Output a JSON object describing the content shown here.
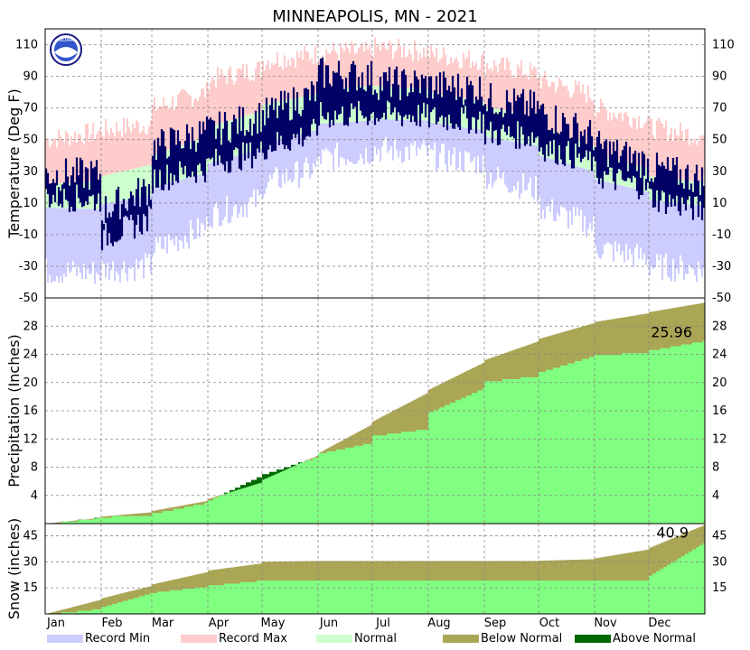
{
  "title": "MINNEAPOLIS, MN - 2021",
  "colors": {
    "record_min": "#ccccff",
    "record_max": "#ffcccc",
    "normal": "#ccffcc",
    "observed_temp": "#000066",
    "below_normal": "#aaa655",
    "above_normal": "#006600",
    "observed_precip": "#80ff80"
  },
  "logo": {
    "icon": "noaa-logo-icon",
    "text": "NOAA"
  },
  "chart_data": [
    {
      "type": "area",
      "panel": "temperature",
      "ylabel": "Temperature (Deg F)",
      "ylim": [
        -50,
        120
      ],
      "yticks": [
        "110",
        "90",
        "70",
        "50",
        "30",
        "10",
        "-10",
        "-30",
        "-50"
      ],
      "x_months": [
        "Jan",
        "Feb",
        "Mar",
        "Apr",
        "May",
        "Jun",
        "Jul",
        "Aug",
        "Sep",
        "Oct",
        "Nov",
        "Dec"
      ],
      "grid": true,
      "series": [
        {
          "name": "Record Max",
          "month_points": [
            {
              "month": "Jan",
              "values": [
                50,
                55
              ]
            },
            {
              "month": "Feb",
              "values": [
                56,
                60
              ]
            },
            {
              "month": "Mar",
              "values": [
                70,
                80
              ]
            },
            {
              "month": "Apr",
              "values": [
                88,
                95
              ]
            },
            {
              "month": "May",
              "values": [
                100,
                104
              ]
            },
            {
              "month": "Jun",
              "values": [
                106,
                105
              ]
            },
            {
              "month": "Jul",
              "values": [
                108,
                106
              ]
            },
            {
              "month": "Aug",
              "values": [
                104,
                100
              ]
            },
            {
              "month": "Sep",
              "values": [
                98,
                92
              ]
            },
            {
              "month": "Oct",
              "values": [
                88,
                78
              ]
            },
            {
              "month": "Nov",
              "values": [
                70,
                62
              ]
            },
            {
              "month": "Dec",
              "values": [
                58,
                52
              ]
            }
          ]
        },
        {
          "name": "Normal",
          "normal_high": [
            {
              "month": "Jan",
              "values": [
                22,
                24
              ]
            },
            {
              "month": "Feb",
              "values": [
                27,
                34
              ]
            },
            {
              "month": "Mar",
              "values": [
                40,
                52
              ]
            },
            {
              "month": "Apr",
              "values": [
                58,
                68
              ]
            },
            {
              "month": "May",
              "values": [
                72,
                79
              ]
            },
            {
              "month": "Jun",
              "values": [
                82,
                84
              ]
            },
            {
              "month": "Jul",
              "values": [
                84,
                82
              ]
            },
            {
              "month": "Aug",
              "values": [
                80,
                74
              ]
            },
            {
              "month": "Sep",
              "values": [
                71,
                64
              ]
            },
            {
              "month": "Oct",
              "values": [
                58,
                46
              ]
            },
            {
              "month": "Nov",
              "values": [
                40,
                32
              ]
            },
            {
              "month": "Dec",
              "values": [
                27,
                23
              ]
            }
          ],
          "normal_low": [
            {
              "month": "Jan",
              "values": [
                7,
                6
              ]
            },
            {
              "month": "Feb",
              "values": [
                9,
                15
              ]
            },
            {
              "month": "Mar",
              "values": [
                20,
                29
              ]
            },
            {
              "month": "Apr",
              "values": [
                35,
                44
              ]
            },
            {
              "month": "May",
              "values": [
                48,
                56
              ]
            },
            {
              "month": "Jun",
              "values": [
                60,
                62
              ]
            },
            {
              "month": "Jul",
              "values": [
                63,
                62
              ]
            },
            {
              "month": "Aug",
              "values": [
                61,
                56
              ]
            },
            {
              "month": "Sep",
              "values": [
                52,
                46
              ]
            },
            {
              "month": "Oct",
              "values": [
                40,
                30
              ]
            },
            {
              "month": "Nov",
              "values": [
                25,
                17
              ]
            },
            {
              "month": "Dec",
              "values": [
                12,
                8
              ]
            }
          ]
        },
        {
          "name": "Record Min",
          "month_points": [
            {
              "month": "Jan",
              "values": [
                -33,
                -34
              ]
            },
            {
              "month": "Feb",
              "values": [
                -32,
                -30
              ]
            },
            {
              "month": "Mar",
              "values": [
                -20,
                -5
              ]
            },
            {
              "month": "Apr",
              "values": [
                2,
                12
              ]
            },
            {
              "month": "May",
              "values": [
                22,
                32
              ]
            },
            {
              "month": "Jun",
              "values": [
                38,
                42
              ]
            },
            {
              "month": "Jul",
              "values": [
                44,
                42
              ]
            },
            {
              "month": "Aug",
              "values": [
                40,
                35
              ]
            },
            {
              "month": "Sep",
              "values": [
                28,
                18
              ]
            },
            {
              "month": "Oct",
              "values": [
                8,
                -5
              ]
            },
            {
              "month": "Nov",
              "values": [
                -18,
                -25
              ]
            },
            {
              "month": "Dec",
              "values": [
                -30,
                -32
              ]
            }
          ]
        },
        {
          "name": "Observed",
          "month_points": [
            {
              "month": "Jan",
              "high": [
                28,
                28
              ],
              "low": [
                14,
                12
              ]
            },
            {
              "month": "Feb",
              "high": [
                5,
                20
              ],
              "low": [
                -12,
                0
              ]
            },
            {
              "month": "Mar",
              "high": [
                45,
                55
              ],
              "low": [
                25,
                32
              ]
            },
            {
              "month": "Apr",
              "high": [
                55,
                65
              ],
              "low": [
                35,
                42
              ]
            },
            {
              "month": "May",
              "high": [
                65,
                80
              ],
              "low": [
                45,
                55
              ]
            },
            {
              "month": "Jun",
              "high": [
                92,
                90
              ],
              "low": [
                65,
                66
              ]
            },
            {
              "month": "Jul",
              "high": [
                86,
                85
              ],
              "low": [
                66,
                65
              ]
            },
            {
              "month": "Aug",
              "high": [
                84,
                82
              ],
              "low": [
                64,
                62
              ]
            },
            {
              "month": "Sep",
              "high": [
                76,
                70
              ],
              "low": [
                54,
                52
              ]
            },
            {
              "month": "Oct",
              "high": [
                68,
                52
              ],
              "low": [
                46,
                36
              ]
            },
            {
              "month": "Nov",
              "high": [
                46,
                35
              ],
              "low": [
                28,
                20
              ]
            },
            {
              "month": "Dec",
              "high": [
                32,
                25
              ],
              "low": [
                14,
                5
              ]
            }
          ]
        }
      ]
    },
    {
      "type": "area",
      "panel": "precipitation",
      "ylabel": "Precipitation (Inches)",
      "ylim": [
        0,
        32
      ],
      "yticks": [
        "28",
        "24",
        "20",
        "16",
        "12",
        "8",
        "4"
      ],
      "grid": true,
      "annotation": "25.96",
      "series": [
        {
          "name": "Normal",
          "cumulative": [
            {
              "month": "Jan",
              "values": [
                0,
                0.8
              ]
            },
            {
              "month": "Feb",
              "values": [
                1.0,
                1.6
              ]
            },
            {
              "month": "Mar",
              "values": [
                1.8,
                3.2
              ]
            },
            {
              "month": "Apr",
              "values": [
                3.5,
                5.8
              ]
            },
            {
              "month": "May",
              "values": [
                6.2,
                9.6
              ]
            },
            {
              "month": "Jun",
              "values": [
                10.0,
                14.0
              ]
            },
            {
              "month": "Jul",
              "values": [
                14.5,
                18.5
              ]
            },
            {
              "month": "Aug",
              "values": [
                19.0,
                22.8
              ]
            },
            {
              "month": "Sep",
              "values": [
                23.2,
                25.8
              ]
            },
            {
              "month": "Oct",
              "values": [
                26.2,
                28.4
              ]
            },
            {
              "month": "Nov",
              "values": [
                28.6,
                29.8
              ]
            },
            {
              "month": "Dec",
              "values": [
                30.0,
                31.3
              ]
            }
          ]
        },
        {
          "name": "Observed",
          "cumulative": [
            {
              "month": "Jan",
              "values": [
                0,
                0.9
              ]
            },
            {
              "month": "Feb",
              "values": [
                1.0,
                1.3
              ]
            },
            {
              "month": "Mar",
              "values": [
                1.5,
                3.0
              ]
            },
            {
              "month": "Apr",
              "values": [
                3.3,
                6.8
              ]
            },
            {
              "month": "May",
              "values": [
                7.0,
                9.5
              ]
            },
            {
              "month": "Jun",
              "values": [
                10.0,
                11.5
              ]
            },
            {
              "month": "Jul",
              "values": [
                12.5,
                13.5
              ]
            },
            {
              "month": "Aug",
              "values": [
                15.8,
                19.2
              ]
            },
            {
              "month": "Sep",
              "values": [
                20.2,
                21.0
              ]
            },
            {
              "month": "Oct",
              "values": [
                21.5,
                23.8
              ]
            },
            {
              "month": "Nov",
              "values": [
                23.9,
                24.4
              ]
            },
            {
              "month": "Dec",
              "values": [
                24.6,
                25.96
              ]
            }
          ]
        }
      ]
    },
    {
      "type": "area",
      "panel": "snow",
      "ylabel": "Snow (inches)",
      "ylim": [
        0,
        52
      ],
      "yticks": [
        "45",
        "30",
        "15"
      ],
      "grid": true,
      "annotation": "40.9",
      "series": [
        {
          "name": "Normal",
          "cumulative": [
            {
              "month": "Jan",
              "values": [
                0,
                8
              ]
            },
            {
              "month": "Feb",
              "values": [
                9,
                16
              ]
            },
            {
              "month": "Mar",
              "values": [
                17,
                24
              ]
            },
            {
              "month": "Apr",
              "values": [
                25,
                29
              ]
            },
            {
              "month": "May",
              "values": [
                30,
                30.5
              ]
            },
            {
              "month": "Jun",
              "values": [
                30.5,
                30.5
              ]
            },
            {
              "month": "Jul",
              "values": [
                30.5,
                30.5
              ]
            },
            {
              "month": "Aug",
              "values": [
                30.5,
                30.5
              ]
            },
            {
              "month": "Sep",
              "values": [
                30.5,
                30.5
              ]
            },
            {
              "month": "Oct",
              "values": [
                30.6,
                31.5
              ]
            },
            {
              "month": "Nov",
              "values": [
                32,
                37
              ]
            },
            {
              "month": "Dec",
              "values": [
                38,
                51
              ]
            }
          ]
        },
        {
          "name": "Observed",
          "cumulative": [
            {
              "month": "Jan",
              "values": [
                0,
                3
              ]
            },
            {
              "month": "Feb",
              "values": [
                4,
                12
              ]
            },
            {
              "month": "Mar",
              "values": [
                12.5,
                16
              ]
            },
            {
              "month": "Apr",
              "values": [
                16.5,
                19.4
              ]
            },
            {
              "month": "May",
              "values": [
                19.4,
                19.4
              ]
            },
            {
              "month": "Jun",
              "values": [
                19.4,
                19.4
              ]
            },
            {
              "month": "Jul",
              "values": [
                19.4,
                19.4
              ]
            },
            {
              "month": "Aug",
              "values": [
                19.4,
                19.4
              ]
            },
            {
              "month": "Sep",
              "values": [
                19.4,
                19.4
              ]
            },
            {
              "month": "Oct",
              "values": [
                19.4,
                19.4
              ]
            },
            {
              "month": "Nov",
              "values": [
                19.4,
                19.4
              ]
            },
            {
              "month": "Dec",
              "values": [
                22,
                40.9
              ]
            }
          ]
        }
      ]
    }
  ],
  "legend": [
    {
      "label": "Record Min",
      "color_key": "record_min"
    },
    {
      "label": "Record Max",
      "color_key": "record_max"
    },
    {
      "label": "Normal",
      "color_key": "normal"
    },
    {
      "label": "Below Normal",
      "color_key": "below_normal"
    },
    {
      "label": "Above Normal",
      "color_key": "above_normal"
    }
  ]
}
